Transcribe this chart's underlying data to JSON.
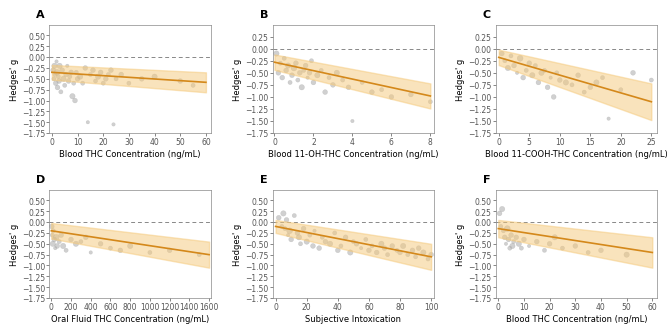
{
  "panels": [
    {
      "label": "A",
      "xlabel": "Blood THC Concentration (ng/mL)",
      "ylabel": "Hedges' g",
      "xlim": [
        -1,
        62
      ],
      "ylim": [
        -1.75,
        0.75
      ],
      "yticks": [
        0.5,
        0.25,
        0.0,
        -0.25,
        -0.5,
        -0.75,
        -1.0,
        -1.25,
        -1.5,
        -1.75
      ],
      "xticks": [
        0,
        10,
        20,
        30,
        40,
        50,
        60
      ],
      "line_x": [
        0,
        60
      ],
      "line_y": [
        -0.35,
        -0.58
      ],
      "ci_upper": [
        -0.18,
        -0.35
      ],
      "ci_lower": [
        -0.52,
        -0.81
      ],
      "scatter_x": [
        0.5,
        0.8,
        1.0,
        1.2,
        1.5,
        1.8,
        2.0,
        2.2,
        2.5,
        2.8,
        3.0,
        3.5,
        4.0,
        4.5,
        5.0,
        5.5,
        6.0,
        6.5,
        7.0,
        7.5,
        8.0,
        8.5,
        9.0,
        9.5,
        10,
        11,
        12,
        13,
        14,
        15,
        16,
        17,
        18,
        19,
        20,
        21,
        22,
        23,
        24,
        25,
        27,
        30,
        35,
        40,
        50,
        55
      ],
      "scatter_y": [
        -0.3,
        -0.5,
        -0.2,
        -0.4,
        -0.6,
        -0.1,
        -0.35,
        -0.7,
        -0.45,
        -0.55,
        -0.2,
        -0.8,
        -0.3,
        -0.5,
        -0.65,
        -0.4,
        -0.2,
        -0.55,
        -0.45,
        -0.35,
        -0.9,
        -0.6,
        -1.0,
        -0.35,
        -0.5,
        -0.45,
        -0.6,
        -0.25,
        -1.5,
        -0.4,
        -0.3,
        -0.55,
        -0.45,
        -0.35,
        -0.6,
        -0.5,
        -0.4,
        -0.3,
        -1.55,
        -0.5,
        -0.4,
        -0.6,
        -0.5,
        -0.45,
        -0.55,
        -0.65
      ],
      "scatter_sizes": [
        20,
        15,
        25,
        15,
        20,
        10,
        30,
        20,
        15,
        20,
        25,
        15,
        20,
        25,
        15,
        20,
        10,
        20,
        15,
        20,
        25,
        15,
        20,
        15,
        20,
        25,
        15,
        20,
        10,
        15,
        20,
        15,
        25,
        20,
        15,
        20,
        15,
        20,
        10,
        15,
        20,
        15,
        20,
        25,
        20,
        15
      ]
    },
    {
      "label": "B",
      "xlabel": "Blood 11-OH-THC Concentration (ng/mL)",
      "ylabel": "Hedges' g",
      "xlim": [
        -0.1,
        8.2
      ],
      "ylim": [
        -1.75,
        0.5
      ],
      "yticks": [
        0.25,
        0.0,
        -0.25,
        -0.5,
        -0.75,
        -1.0,
        -1.25,
        -1.5,
        -1.75
      ],
      "xticks": [
        0,
        2,
        4,
        6,
        8
      ],
      "line_x": [
        0,
        8
      ],
      "line_y": [
        -0.28,
        -0.98
      ],
      "ci_upper": [
        -0.12,
        -0.72
      ],
      "ci_lower": [
        -0.44,
        -1.24
      ],
      "scatter_x": [
        0.1,
        0.2,
        0.3,
        0.4,
        0.5,
        0.6,
        0.7,
        0.8,
        0.9,
        1.0,
        1.1,
        1.2,
        1.3,
        1.4,
        1.5,
        1.6,
        1.7,
        1.8,
        1.9,
        2.0,
        2.2,
        2.4,
        2.6,
        2.8,
        3.0,
        3.2,
        3.5,
        3.8,
        4.0,
        4.5,
        5.0,
        5.5,
        6.0,
        7.0,
        8.0
      ],
      "scatter_y": [
        -0.1,
        -0.5,
        -0.3,
        -0.6,
        -0.2,
        -0.45,
        -0.35,
        -0.7,
        -0.55,
        -0.4,
        -0.3,
        -0.65,
        -0.5,
        -0.8,
        -0.45,
        -0.35,
        -0.6,
        -0.5,
        -0.25,
        -0.7,
        -0.55,
        -0.45,
        -0.9,
        -0.6,
        -0.75,
        -0.5,
        -0.65,
        -0.8,
        -1.5,
        -0.7,
        -0.9,
        -0.85,
        -1.0,
        -0.95,
        -1.1
      ],
      "scatter_sizes": [
        25,
        20,
        15,
        20,
        15,
        20,
        25,
        15,
        20,
        30,
        20,
        15,
        20,
        25,
        15,
        20,
        10,
        20,
        15,
        20,
        25,
        15,
        20,
        15,
        20,
        25,
        15,
        20,
        10,
        15,
        20,
        15,
        20,
        20,
        15
      ]
    },
    {
      "label": "C",
      "xlabel": "Blood 11-COOH-THC Concentration (ng/mL)",
      "ylabel": "Hedges' g",
      "xlim": [
        -0.5,
        26
      ],
      "ylim": [
        -1.75,
        0.5
      ],
      "yticks": [
        0.25,
        0.0,
        -0.25,
        -0.5,
        -0.75,
        -1.0,
        -1.25,
        -1.5,
        -1.75
      ],
      "xticks": [
        0,
        5,
        10,
        15,
        20,
        25
      ],
      "line_x": [
        0,
        25
      ],
      "line_y": [
        -0.18,
        -1.1
      ],
      "ci_upper": [
        -0.02,
        -0.72
      ],
      "ci_lower": [
        -0.34,
        -1.48
      ],
      "scatter_x": [
        0.5,
        1.0,
        1.5,
        2.0,
        2.5,
        3.0,
        3.5,
        4.0,
        4.5,
        5.0,
        5.5,
        6.0,
        6.5,
        7.0,
        7.5,
        8.0,
        8.5,
        9.0,
        9.5,
        10,
        11,
        12,
        13,
        14,
        15,
        16,
        17,
        18,
        20,
        22,
        25
      ],
      "scatter_y": [
        -0.1,
        -0.25,
        -0.4,
        -0.15,
        -0.35,
        -0.5,
        -0.2,
        -0.6,
        -0.45,
        -0.3,
        -0.55,
        -0.35,
        -0.7,
        -0.5,
        -0.45,
        -0.8,
        -0.6,
        -1.0,
        -0.5,
        -0.65,
        -0.7,
        -0.75,
        -0.55,
        -0.9,
        -0.8,
        -0.7,
        -0.6,
        -1.45,
        -0.85,
        -0.5,
        -0.65
      ],
      "scatter_sizes": [
        20,
        15,
        25,
        15,
        20,
        10,
        30,
        20,
        15,
        20,
        25,
        15,
        20,
        25,
        15,
        20,
        10,
        20,
        15,
        20,
        25,
        15,
        20,
        15,
        20,
        25,
        15,
        10,
        15,
        20,
        15
      ]
    },
    {
      "label": "D",
      "xlabel": "Oral Fluid THC Concentration (ng/mL)",
      "ylabel": "Hedges' g",
      "xlim": [
        -20,
        1620
      ],
      "ylim": [
        -1.75,
        0.75
      ],
      "yticks": [
        0.5,
        0.25,
        0.0,
        -0.25,
        -0.5,
        -0.75,
        -1.0,
        -1.25,
        -1.5,
        -1.75
      ],
      "xticks": [
        0,
        200,
        400,
        600,
        800,
        1000,
        1200,
        1400,
        1600
      ],
      "line_x": [
        0,
        1600
      ],
      "line_y": [
        -0.2,
        -0.75
      ],
      "ci_upper": [
        -0.02,
        -0.45
      ],
      "ci_lower": [
        -0.38,
        -1.05
      ],
      "scatter_x": [
        5,
        10,
        15,
        20,
        30,
        40,
        50,
        60,
        80,
        100,
        120,
        150,
        200,
        250,
        300,
        350,
        400,
        500,
        600,
        700,
        800,
        1000,
        1200,
        1500
      ],
      "scatter_y": [
        -0.1,
        -0.3,
        -0.5,
        -0.2,
        -0.4,
        -0.6,
        -0.35,
        -0.55,
        -0.45,
        -0.3,
        -0.55,
        -0.65,
        -0.4,
        -0.5,
        -0.45,
        -0.35,
        -0.7,
        -0.5,
        -0.6,
        -0.65,
        -0.55,
        -0.7,
        -0.65,
        -0.75
      ],
      "scatter_sizes": [
        20,
        15,
        25,
        15,
        20,
        10,
        30,
        20,
        15,
        20,
        25,
        15,
        20,
        25,
        15,
        20,
        10,
        20,
        15,
        20,
        25,
        15,
        20,
        15
      ]
    },
    {
      "label": "E",
      "xlabel": "Subjective Intoxication",
      "ylabel": "Hedges' g",
      "xlim": [
        -2,
        102
      ],
      "ylim": [
        -1.75,
        0.75
      ],
      "yticks": [
        0.5,
        0.25,
        0.0,
        -0.25,
        -0.5,
        -0.75,
        -1.0,
        -1.25,
        -1.5,
        -1.75
      ],
      "xticks": [
        0,
        20,
        40,
        60,
        80,
        100
      ],
      "line_x": [
        0,
        100
      ],
      "line_y": [
        -0.1,
        -0.8
      ],
      "ci_upper": [
        0.05,
        -0.5
      ],
      "ci_lower": [
        -0.25,
        -1.1
      ],
      "scatter_x": [
        2,
        4,
        5,
        6,
        7,
        8,
        9,
        10,
        12,
        14,
        15,
        16,
        18,
        20,
        22,
        24,
        25,
        28,
        30,
        32,
        35,
        38,
        40,
        42,
        45,
        48,
        50,
        52,
        55,
        58,
        60,
        62,
        65,
        68,
        70,
        72,
        75,
        78,
        80,
        82,
        85,
        88,
        90,
        92,
        95,
        98,
        100
      ],
      "scatter_y": [
        0.1,
        -0.1,
        0.2,
        -0.15,
        0.05,
        -0.3,
        -0.2,
        -0.4,
        0.15,
        -0.25,
        -0.35,
        -0.5,
        -0.15,
        -0.45,
        -0.3,
        -0.55,
        -0.2,
        -0.6,
        -0.35,
        -0.45,
        -0.5,
        -0.25,
        -0.65,
        -0.55,
        -0.35,
        -0.7,
        -0.45,
        -0.5,
        -0.6,
        -0.4,
        -0.65,
        -0.55,
        -0.7,
        -0.5,
        -0.6,
        -0.75,
        -0.55,
        -0.65,
        -0.7,
        -0.55,
        -0.75,
        -0.65,
        -0.8,
        -0.6,
        -0.7,
        -0.85,
        -0.75
      ],
      "scatter_sizes": [
        20,
        15,
        25,
        15,
        20,
        10,
        30,
        20,
        15,
        20,
        25,
        15,
        20,
        25,
        15,
        20,
        10,
        20,
        15,
        20,
        25,
        15,
        20,
        15,
        20,
        25,
        15,
        20,
        10,
        15,
        20,
        15,
        20,
        25,
        20,
        15,
        20,
        15,
        20,
        25,
        15,
        20,
        15,
        20,
        25,
        15,
        20
      ]
    },
    {
      "label": "F",
      "xlabel": "Blood THC Concentration (ng/mL)",
      "ylabel": "Hedges' g",
      "xlim": [
        -1,
        62
      ],
      "ylim": [
        -1.75,
        0.75
      ],
      "yticks": [
        0.5,
        0.25,
        0.0,
        -0.25,
        -0.5,
        -0.75,
        -1.0,
        -1.25,
        -1.5,
        -1.75
      ],
      "xticks": [
        0,
        10,
        20,
        30,
        40,
        50,
        60
      ],
      "line_x": [
        0,
        60
      ],
      "line_y": [
        -0.15,
        -0.7
      ],
      "ci_upper": [
        0.05,
        -0.35
      ],
      "ci_lower": [
        -0.35,
        -1.05
      ],
      "scatter_x": [
        0.5,
        1.0,
        1.5,
        2.0,
        2.5,
        3.0,
        3.5,
        4.0,
        4.5,
        5.0,
        5.5,
        6.0,
        7.0,
        8.0,
        9.0,
        10,
        12,
        15,
        18,
        20,
        22,
        25,
        30,
        35,
        40,
        50
      ],
      "scatter_y": [
        0.2,
        -0.1,
        0.3,
        -0.2,
        -0.35,
        -0.5,
        -0.15,
        -0.4,
        -0.6,
        -0.3,
        -0.55,
        -0.45,
        -0.35,
        -0.5,
        -0.6,
        -0.4,
        -0.55,
        -0.45,
        -0.65,
        -0.5,
        -0.35,
        -0.6,
        -0.55,
        -0.7,
        -0.65,
        -0.75
      ],
      "scatter_sizes": [
        20,
        15,
        25,
        15,
        20,
        10,
        30,
        20,
        15,
        20,
        25,
        15,
        20,
        25,
        15,
        20,
        10,
        20,
        15,
        20,
        25,
        15,
        20,
        15,
        20,
        25
      ]
    }
  ],
  "line_color": "#D4881A",
  "ci_color": "#F5C97A",
  "ci_alpha": 0.5,
  "scatter_color": "#AAAAAA",
  "scatter_alpha": 0.55,
  "scatter_edge_color": "#AAAAAA",
  "hline_color": "#888888",
  "hline_style": "--",
  "background_color": "#FFFFFF",
  "label_fontsize": 7,
  "tick_fontsize": 5.5,
  "axis_label_fontsize": 6.0,
  "panel_label_fontsize": 8
}
